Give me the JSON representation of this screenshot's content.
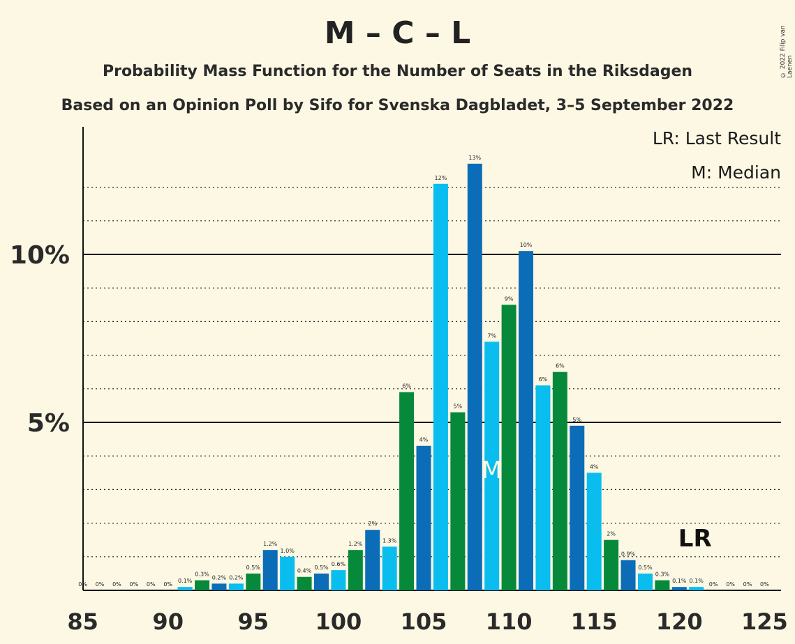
{
  "title": "M – C – L",
  "subtitle": "Probability Mass Function for the Number of Seats in the Riksdagen",
  "subtitle2": "Based on an Opinion Poll by Sifo for Svenska Dagbladet, 3–5 September 2022",
  "copyright": "© 2022 Filip van Laenen",
  "legend": {
    "last_result": "LR: Last Result",
    "median": "M: Median"
  },
  "markers": {
    "median_label": "M",
    "median_seat": 109,
    "last_result_label": "LR",
    "last_result_seat": 121
  },
  "colors": {
    "blue_dark": "#0b6db7",
    "blue_light": "#09bdef",
    "green": "#07893c",
    "background": "#fdf8e4"
  },
  "chart_data": {
    "type": "bar",
    "title": "M – C – L",
    "xlabel": "",
    "ylabel": "",
    "x_ticks": [
      "85",
      "90",
      "95",
      "100",
      "105",
      "110",
      "115",
      "120",
      "125"
    ],
    "y_ticks": [
      "5%",
      "10%"
    ],
    "xlim": [
      85,
      125
    ],
    "ylim": [
      0,
      13.8
    ],
    "grid": true,
    "categories": [
      85,
      86,
      87,
      88,
      89,
      90,
      91,
      92,
      93,
      94,
      95,
      96,
      97,
      98,
      99,
      100,
      101,
      102,
      103,
      104,
      105,
      106,
      107,
      108,
      109,
      110,
      111,
      112,
      113,
      114,
      115,
      116,
      117,
      118,
      119,
      120,
      121,
      122,
      123,
      124,
      125
    ],
    "values": [
      0,
      0,
      0,
      0,
      0,
      0,
      0.1,
      0.3,
      0.2,
      0.2,
      0.5,
      1.2,
      1.0,
      0.4,
      0.5,
      0.6,
      1.2,
      1.8,
      1.3,
      5.9,
      4.3,
      12.1,
      5.3,
      12.7,
      7.4,
      8.5,
      10.1,
      6.1,
      6.5,
      4.9,
      3.5,
      1.5,
      0.9,
      0.5,
      0.3,
      0.1,
      0.1,
      0,
      0,
      0,
      0
    ],
    "labels": [
      "0%",
      "0%",
      "0%",
      "0%",
      "0%",
      "0%",
      "0.1%",
      "0.3%",
      "0.2%",
      "0.2%",
      "0.5%",
      "1.2%",
      "1.0%",
      "0.4%",
      "0.5%",
      "0.6%",
      "1.2%",
      "2%",
      "1.3%",
      "6%",
      "4%",
      "12%",
      "5%",
      "13%",
      "7%",
      "9%",
      "10%",
      "6%",
      "6%",
      "5%",
      "4%",
      "2%",
      "0.9%",
      "0.5%",
      "0.3%",
      "0.1%",
      "0.1%",
      "0%",
      "0%",
      "0%",
      "0%"
    ]
  }
}
